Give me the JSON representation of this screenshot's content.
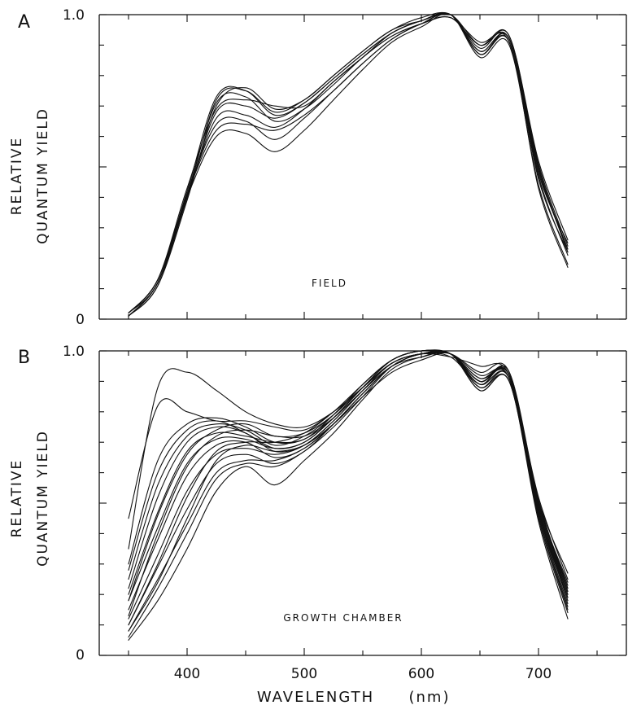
{
  "chart_data": [
    {
      "type": "line",
      "panel": "A",
      "annotation": "FIELD",
      "ylabel_lines": [
        "RELATIVE",
        "QUANTUM YIELD"
      ],
      "ytick_labels": [
        "0",
        "1.0"
      ],
      "ylim": [
        0,
        1.0
      ],
      "xlim": [
        350,
        725
      ],
      "x": [
        350,
        375,
        400,
        425,
        450,
        475,
        500,
        525,
        550,
        575,
        600,
        625,
        650,
        675,
        700,
        725
      ],
      "series": [
        {
          "values": [
            0.01,
            0.12,
            0.4,
            0.72,
            0.75,
            0.68,
            0.72,
            0.8,
            0.88,
            0.95,
            0.98,
            1.0,
            0.9,
            0.92,
            0.5,
            0.22
          ]
        },
        {
          "values": [
            0.02,
            0.13,
            0.42,
            0.73,
            0.75,
            0.67,
            0.71,
            0.79,
            0.87,
            0.94,
            0.98,
            1.0,
            0.88,
            0.92,
            0.49,
            0.23
          ]
        },
        {
          "values": [
            0.01,
            0.11,
            0.39,
            0.7,
            0.76,
            0.69,
            0.72,
            0.8,
            0.88,
            0.95,
            0.99,
            1.0,
            0.89,
            0.93,
            0.51,
            0.24
          ]
        },
        {
          "values": [
            0.02,
            0.12,
            0.41,
            0.71,
            0.73,
            0.65,
            0.69,
            0.77,
            0.86,
            0.93,
            0.97,
            0.99,
            0.91,
            0.91,
            0.47,
            0.21
          ]
        },
        {
          "values": [
            0.01,
            0.12,
            0.4,
            0.68,
            0.7,
            0.66,
            0.71,
            0.79,
            0.87,
            0.94,
            0.98,
            1.0,
            0.88,
            0.92,
            0.5,
            0.23
          ]
        },
        {
          "values": [
            0.02,
            0.13,
            0.43,
            0.69,
            0.72,
            0.7,
            0.7,
            0.78,
            0.86,
            0.94,
            0.98,
            1.0,
            0.87,
            0.92,
            0.48,
            0.25
          ]
        },
        {
          "values": [
            0.01,
            0.11,
            0.4,
            0.66,
            0.67,
            0.63,
            0.69,
            0.78,
            0.86,
            0.93,
            0.97,
            1.0,
            0.87,
            0.91,
            0.46,
            0.22
          ]
        },
        {
          "values": [
            0.02,
            0.12,
            0.41,
            0.64,
            0.65,
            0.59,
            0.66,
            0.75,
            0.84,
            0.92,
            0.97,
            1.0,
            0.86,
            0.9,
            0.44,
            0.18
          ]
        },
        {
          "values": [
            0.01,
            0.12,
            0.4,
            0.6,
            0.61,
            0.55,
            0.62,
            0.72,
            0.82,
            0.91,
            0.96,
            1.0,
            0.87,
            0.91,
            0.43,
            0.17
          ]
        },
        {
          "values": [
            0.02,
            0.13,
            0.41,
            0.62,
            0.64,
            0.62,
            0.67,
            0.75,
            0.84,
            0.92,
            0.97,
            0.99,
            0.9,
            0.93,
            0.52,
            0.26
          ]
        }
      ]
    },
    {
      "type": "line",
      "panel": "B",
      "annotation": "GROWTH CHAMBER",
      "ylabel_lines": [
        "RELATIVE",
        "QUANTUM YIELD"
      ],
      "xlabel": "WAVELENGTH",
      "xlabel_unit": "(nm)",
      "xtick_labels": [
        "400",
        "500",
        "600",
        "700"
      ],
      "xticks": [
        400,
        500,
        600,
        700
      ],
      "ytick_labels": [
        "0",
        "1.0"
      ],
      "ylim": [
        0,
        1.0
      ],
      "xlim": [
        350,
        725
      ],
      "x": [
        350,
        375,
        400,
        425,
        450,
        475,
        500,
        525,
        550,
        575,
        600,
        625,
        650,
        675,
        700,
        725
      ],
      "series": [
        {
          "values": [
            0.35,
            0.88,
            0.93,
            0.87,
            0.8,
            0.76,
            0.75,
            0.8,
            0.88,
            0.96,
            0.99,
            0.98,
            0.95,
            0.92,
            0.52,
            0.25
          ]
        },
        {
          "values": [
            0.45,
            0.82,
            0.8,
            0.77,
            0.77,
            0.75,
            0.74,
            0.8,
            0.88,
            0.96,
            0.99,
            0.99,
            0.93,
            0.93,
            0.5,
            0.22
          ]
        },
        {
          "values": [
            0.3,
            0.64,
            0.76,
            0.78,
            0.75,
            0.7,
            0.71,
            0.79,
            0.89,
            0.97,
            1.0,
            0.99,
            0.9,
            0.92,
            0.51,
            0.27
          ]
        },
        {
          "values": [
            0.28,
            0.6,
            0.74,
            0.77,
            0.73,
            0.68,
            0.7,
            0.78,
            0.88,
            0.97,
            1.0,
            0.99,
            0.91,
            0.91,
            0.48,
            0.2
          ]
        },
        {
          "values": [
            0.25,
            0.56,
            0.72,
            0.76,
            0.74,
            0.69,
            0.72,
            0.79,
            0.89,
            0.97,
            1.0,
            0.99,
            0.89,
            0.93,
            0.5,
            0.24
          ]
        },
        {
          "values": [
            0.22,
            0.52,
            0.7,
            0.75,
            0.73,
            0.67,
            0.69,
            0.77,
            0.87,
            0.96,
            0.99,
            0.99,
            0.9,
            0.92,
            0.49,
            0.21
          ]
        },
        {
          "values": [
            0.2,
            0.47,
            0.67,
            0.73,
            0.72,
            0.7,
            0.71,
            0.78,
            0.88,
            0.97,
            1.0,
            0.99,
            0.92,
            0.91,
            0.47,
            0.19
          ]
        },
        {
          "values": [
            0.18,
            0.42,
            0.63,
            0.71,
            0.71,
            0.68,
            0.7,
            0.78,
            0.88,
            0.97,
            1.0,
            0.99,
            0.9,
            0.92,
            0.5,
            0.23
          ]
        },
        {
          "values": [
            0.15,
            0.38,
            0.59,
            0.69,
            0.7,
            0.65,
            0.68,
            0.76,
            0.86,
            0.95,
            0.99,
            0.99,
            0.88,
            0.9,
            0.46,
            0.16
          ]
        },
        {
          "values": [
            0.12,
            0.33,
            0.54,
            0.66,
            0.68,
            0.66,
            0.69,
            0.77,
            0.87,
            0.96,
            0.99,
            0.99,
            0.89,
            0.91,
            0.48,
            0.18
          ]
        },
        {
          "values": [
            0.1,
            0.29,
            0.48,
            0.63,
            0.66,
            0.63,
            0.67,
            0.76,
            0.86,
            0.95,
            0.99,
            0.99,
            0.87,
            0.9,
            0.45,
            0.14
          ]
        },
        {
          "values": [
            0.08,
            0.25,
            0.43,
            0.6,
            0.64,
            0.64,
            0.68,
            0.76,
            0.86,
            0.95,
            0.99,
            0.99,
            0.9,
            0.92,
            0.47,
            0.17
          ]
        },
        {
          "values": [
            0.06,
            0.22,
            0.4,
            0.58,
            0.63,
            0.62,
            0.67,
            0.75,
            0.85,
            0.95,
            0.99,
            0.99,
            0.88,
            0.91,
            0.46,
            0.15
          ]
        },
        {
          "values": [
            0.05,
            0.18,
            0.35,
            0.54,
            0.62,
            0.56,
            0.64,
            0.73,
            0.84,
            0.94,
            0.98,
            0.99,
            0.87,
            0.9,
            0.44,
            0.12
          ]
        },
        {
          "values": [
            0.1,
            0.3,
            0.52,
            0.67,
            0.7,
            0.7,
            0.73,
            0.8,
            0.89,
            0.97,
            1.0,
            0.99,
            0.91,
            0.92,
            0.49,
            0.2
          ]
        },
        {
          "values": [
            0.18,
            0.46,
            0.66,
            0.74,
            0.76,
            0.72,
            0.73,
            0.79,
            0.88,
            0.96,
            0.99,
            0.98,
            0.89,
            0.91,
            0.48,
            0.19
          ]
        },
        {
          "values": [
            0.13,
            0.4,
            0.62,
            0.72,
            0.74,
            0.72,
            0.72,
            0.78,
            0.87,
            0.95,
            0.98,
            0.99,
            0.9,
            0.92,
            0.5,
            0.21
          ]
        },
        {
          "values": [
            0.08,
            0.24,
            0.45,
            0.64,
            0.69,
            0.67,
            0.69,
            0.76,
            0.85,
            0.93,
            0.97,
            0.99,
            0.9,
            0.93,
            0.51,
            0.22
          ]
        }
      ]
    }
  ]
}
